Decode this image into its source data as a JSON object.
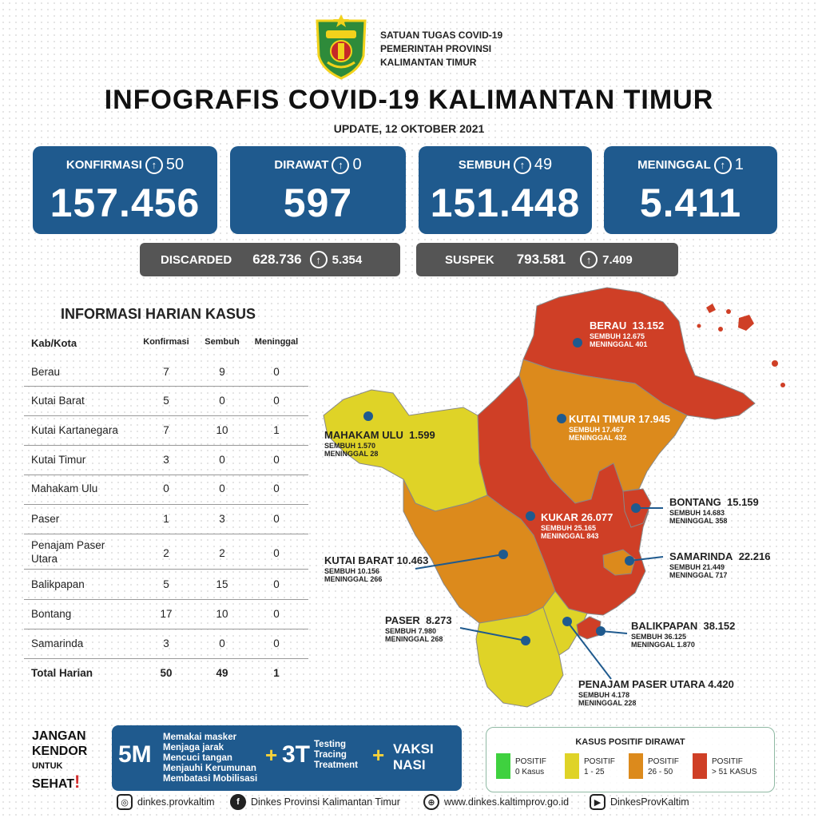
{
  "header": {
    "org_lines": [
      "SATUAN TUGAS COVID-19",
      "PEMERINTAH PROVINSI",
      "KALIMANTAN TIMUR"
    ],
    "title": "INFOGRAFIS COVID-19 KALIMANTAN TIMUR",
    "update": "UPDATE, 12 OKTOBER 2021"
  },
  "cards": [
    {
      "label": "KONFIRMASI",
      "increase": "50",
      "value": "157.456"
    },
    {
      "label": "DIRAWAT",
      "increase": "0",
      "value": "597"
    },
    {
      "label": "SEMBUH",
      "increase": "49",
      "value": "151.448"
    },
    {
      "label": "MENINGGAL",
      "increase": "1",
      "value": "5.411"
    }
  ],
  "pills": [
    {
      "label": "DISCARDED",
      "value": "628.736",
      "increase": "5.354"
    },
    {
      "label": "SUSPEK",
      "value": "793.581",
      "increase": "7.409"
    }
  ],
  "table": {
    "title": "INFORMASI HARIAN KASUS",
    "headers": [
      "Kab/Kota",
      "Konfirmasi",
      "Sembuh",
      "Meninggal"
    ],
    "rows": [
      [
        "Berau",
        "7",
        "9",
        "0"
      ],
      [
        "Kutai Barat",
        "5",
        "0",
        "0"
      ],
      [
        "Kutai Kartanegara",
        "7",
        "10",
        "1"
      ],
      [
        "Kutai Timur",
        "3",
        "0",
        "0"
      ],
      [
        "Mahakam Ulu",
        "0",
        "0",
        "0"
      ],
      [
        "Paser",
        "1",
        "3",
        "0"
      ],
      [
        "Penajam Paser",
        "2",
        "2",
        "0"
      ],
      [
        "Balikpapan",
        "5",
        "15",
        "0"
      ],
      [
        "Bontang",
        "17",
        "10",
        "0"
      ],
      [
        "Samarinda",
        "3",
        "0",
        "0"
      ]
    ],
    "row_extra": {
      "penajam_line2": "Utara"
    },
    "total": [
      "Total Harian",
      "50",
      "49",
      "1"
    ]
  },
  "map": {
    "colors": {
      "red": "#cf3f26",
      "orange": "#dc8a1c",
      "yellow": "#dfd327",
      "green": "#3fd13f",
      "dot": "#1f5a8e"
    },
    "regions": [
      {
        "name": "BERAU",
        "total": "13.152",
        "sembuh": "SEMBUH 12.675",
        "meninggal": "MENINGGAL 401",
        "level": "red"
      },
      {
        "name": "KUTAI TIMUR",
        "total": "17.945",
        "sembuh": "SEMBUH 17.467",
        "meninggal": "MENINGGAL 432",
        "level": "orange"
      },
      {
        "name": "MAHAKAM ULU",
        "total": "1.599",
        "sembuh": "SEMBUH 1.570",
        "meninggal": "MENINGGAL 28",
        "level": "yellow"
      },
      {
        "name": "KUKAR",
        "total": "26.077",
        "sembuh": "SEMBUH 25.165",
        "meninggal": "MENINGGAL 843",
        "level": "red"
      },
      {
        "name": "BONTANG",
        "total": "15.159",
        "sembuh": "SEMBUH 14.683",
        "meninggal": "MENINGGAL 358",
        "level": "red"
      },
      {
        "name": "KUTAI BARAT",
        "total": "10.463",
        "sembuh": "SEMBUH 10.156",
        "meninggal": "MENINGGAL 266",
        "level": "orange"
      },
      {
        "name": "SAMARINDA",
        "total": "22.216",
        "sembuh": "SEMBUH 21.449",
        "meninggal": "MENINGGAL 717",
        "level": "orange"
      },
      {
        "name": "PASER",
        "total": "8.273",
        "sembuh": "SEMBUH 7.980",
        "meninggal": "MENINGGAL 268",
        "level": "yellow"
      },
      {
        "name": "BALIKPAPAN",
        "total": "38.152",
        "sembuh": "SEMBUH 36.125",
        "meninggal": "MENINGGAL 1.870",
        "level": "red"
      },
      {
        "name": "PENAJAM PASER UTARA",
        "total": "4.420",
        "sembuh": "SEMBUH 4.178",
        "meninggal": "MENINGGAL 228",
        "level": "yellow"
      }
    ]
  },
  "legend": {
    "title": "KASUS POSITIF DIRAWAT",
    "items": [
      {
        "line1": "POSITIF",
        "line2": "0 Kasus",
        "color": "#3fd13f"
      },
      {
        "line1": "POSITIF",
        "line2": "1 - 25",
        "color": "#dfd327"
      },
      {
        "line1": "POSITIF",
        "line2": "26 - 50",
        "color": "#dc8a1c"
      },
      {
        "line1": "POSITIF",
        "line2": "> 51 KASUS",
        "color": "#cf3f26"
      }
    ]
  },
  "slogan": {
    "l1": "JANGAN",
    "l2": "KENDOR",
    "l3": "UNTUK",
    "l4": "SEHAT",
    "l4_mark": "!"
  },
  "banner": {
    "m5": "5M",
    "m5_items": [
      "Memakai masker",
      "Menjaga jarak",
      "Mencuci tangan",
      "Menjauhi Kerumunan",
      "Membatasi Mobilisasi"
    ],
    "plus": "+",
    "t3": "3T",
    "t3_items": [
      "Testing",
      "Tracing",
      "Treatment"
    ],
    "vaksi_l1": "VAKSI",
    "vaksi_l2": "NASI"
  },
  "social": [
    {
      "icon": "instagram-icon",
      "text": "dinkes.provkaltim"
    },
    {
      "icon": "facebook-icon",
      "text": "Dinkes Provinsi Kalimantan Timur"
    },
    {
      "icon": "globe-icon",
      "text": "www.dinkes.kaltimprov.go.id"
    },
    {
      "icon": "youtube-icon",
      "text": "DinkesProvKaltim"
    }
  ]
}
